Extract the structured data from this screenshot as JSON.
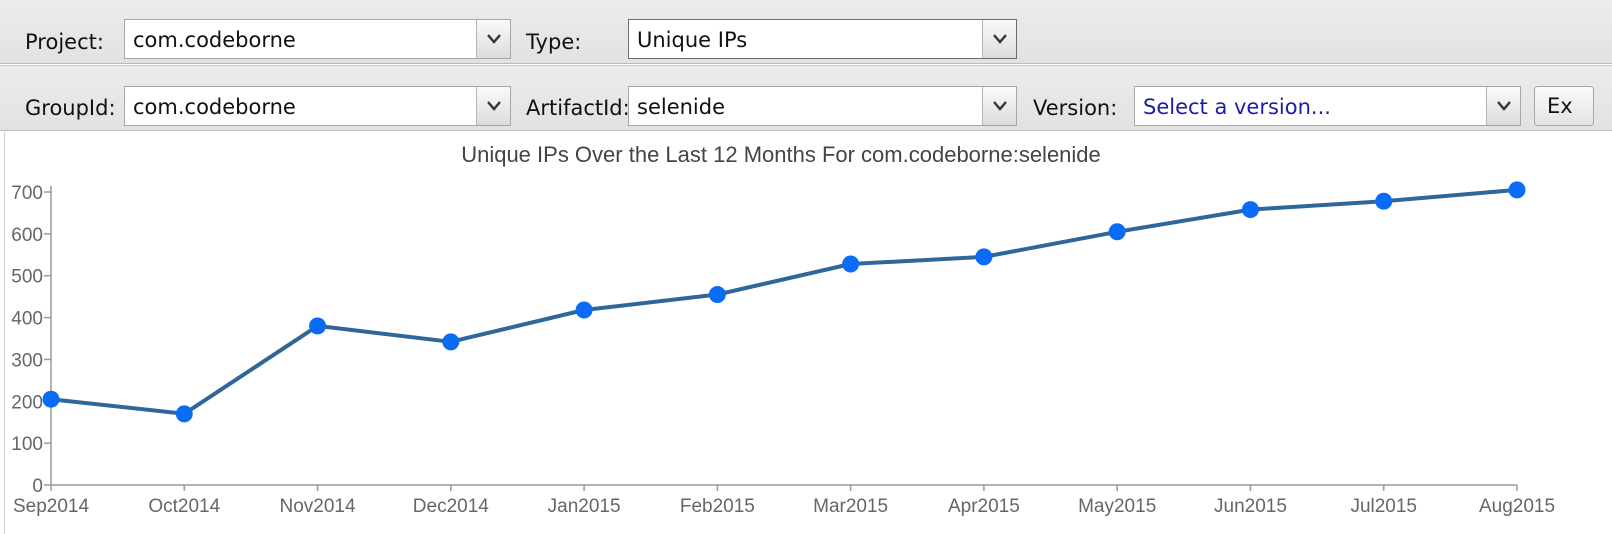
{
  "toolbar1": {
    "project_label": "Project:",
    "project_value": "com.codeborne",
    "type_label": "Type:",
    "type_value": "Unique IPs"
  },
  "toolbar2": {
    "groupid_label": "GroupId:",
    "groupid_value": "com.codeborne",
    "artifactid_label": "ArtifactId:",
    "artifactid_value": "selenide",
    "version_label": "Version:",
    "version_placeholder": "Select a version...",
    "export_label": "Ex"
  },
  "colors": {
    "line": "#2f6799",
    "point": "#0a6cf5"
  },
  "chart_data": {
    "type": "line",
    "title": "Unique IPs Over the Last 12 Months For com.codeborne:selenide",
    "xlabel": "",
    "ylabel": "",
    "categories": [
      "Sep2014",
      "Oct2014",
      "Nov2014",
      "Dec2014",
      "Jan2015",
      "Feb2015",
      "Mar2015",
      "Apr2015",
      "May2015",
      "Jun2015",
      "Jul2015",
      "Aug2015"
    ],
    "values": [
      205,
      170,
      380,
      342,
      418,
      455,
      528,
      545,
      605,
      658,
      678,
      705
    ],
    "ylim": [
      0,
      700
    ],
    "yticks": [
      "0",
      "100",
      "200",
      "300",
      "400",
      "500",
      "600",
      "700"
    ],
    "grid": false,
    "legend": "none"
  }
}
